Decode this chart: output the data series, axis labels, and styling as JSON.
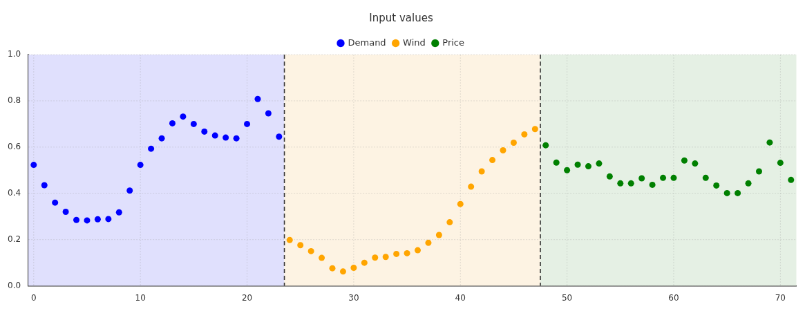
{
  "chart_data": {
    "type": "scatter",
    "title": "Input values",
    "xlim": [
      -0.5,
      71.5
    ],
    "xticks": [
      0,
      10,
      20,
      30,
      40,
      50,
      60,
      70
    ],
    "ylim": [
      0,
      1
    ],
    "yticks": [
      {
        "value": 0,
        "label": "0.0"
      },
      {
        "value": 0.2,
        "label": "0.2"
      },
      {
        "value": 0.4,
        "label": "0.4"
      },
      {
        "value": 0.6,
        "label": "0.6"
      },
      {
        "value": 0.8,
        "label": "0.8"
      },
      {
        "value": 1,
        "label": "1.0"
      }
    ],
    "grid": true,
    "legend": "top",
    "marker": "circle",
    "series": [
      {
        "name": "Demand",
        "color": "#0000ff",
        "x": [
          0,
          1,
          2,
          3,
          4,
          5,
          6,
          7,
          8,
          9,
          10,
          11,
          12,
          13,
          14,
          15,
          16,
          17,
          18,
          19,
          20,
          21,
          22,
          23
        ],
        "values": [
          0.523,
          0.435,
          0.36,
          0.32,
          0.285,
          0.283,
          0.288,
          0.289,
          0.318,
          0.412,
          0.523,
          0.593,
          0.638,
          0.703,
          0.732,
          0.7,
          0.667,
          0.65,
          0.641,
          0.638,
          0.7,
          0.808,
          0.746,
          0.645
        ]
      },
      {
        "name": "Wind",
        "color": "#ffa500",
        "x": [
          24,
          25,
          26,
          27,
          28,
          29,
          30,
          31,
          32,
          33,
          34,
          35,
          36,
          37,
          38,
          39,
          40,
          41,
          42,
          43,
          44,
          45,
          46,
          47
        ],
        "values": [
          0.198,
          0.176,
          0.15,
          0.121,
          0.076,
          0.062,
          0.078,
          0.1,
          0.122,
          0.125,
          0.138,
          0.141,
          0.154,
          0.186,
          0.22,
          0.275,
          0.354,
          0.429,
          0.495,
          0.544,
          0.586,
          0.619,
          0.655,
          0.678
        ]
      },
      {
        "name": "Price",
        "color": "#008000",
        "x": [
          48,
          49,
          50,
          51,
          52,
          53,
          54,
          55,
          56,
          57,
          58,
          59,
          60,
          61,
          62,
          63,
          64,
          65,
          66,
          67,
          68,
          69,
          70,
          71
        ],
        "values": [
          0.608,
          0.533,
          0.5,
          0.524,
          0.517,
          0.529,
          0.473,
          0.443,
          0.443,
          0.465,
          0.437,
          0.467,
          0.467,
          0.542,
          0.529,
          0.467,
          0.434,
          0.401,
          0.401,
          0.443,
          0.495,
          0.62,
          0.532,
          0.458
        ]
      }
    ],
    "bands": [
      {
        "axis": "x",
        "from": -0.5,
        "to": 23.5,
        "color": "#e0e0fd"
      },
      {
        "axis": "x",
        "from": 23.5,
        "to": 47.5,
        "color": "#fdf3e3"
      },
      {
        "axis": "x",
        "from": 47.5,
        "to": 71.5,
        "color": "#e5f0e4"
      }
    ],
    "ref_lines": [
      {
        "axis": "x",
        "value": 23.5,
        "color": "#333333",
        "line_style": "dashed"
      },
      {
        "axis": "x",
        "value": 47.5,
        "color": "#333333",
        "line_style": "dashed"
      }
    ]
  }
}
